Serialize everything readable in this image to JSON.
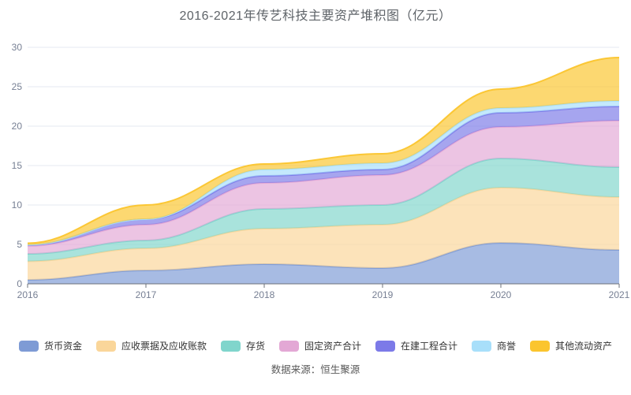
{
  "title": "2016-2021年传艺科技主要资产堆积图（亿元）",
  "source_note": "数据来源：恒生聚源",
  "chart_data": {
    "type": "area",
    "stacked": true,
    "smooth": true,
    "title": "2016-2021年传艺科技主要资产堆积图（亿元）",
    "xlabel": "",
    "ylabel": "",
    "x": [
      "2016",
      "2017",
      "2018",
      "2019",
      "2020",
      "2021"
    ],
    "series": [
      {
        "name": "货币资金",
        "color": "#7E9BD5",
        "values": [
          0.5,
          1.7,
          2.5,
          2.0,
          5.2,
          4.3
        ]
      },
      {
        "name": "应收票据及应收账款",
        "color": "#FAD69A",
        "values": [
          2.35,
          2.8,
          4.5,
          5.5,
          7.0,
          6.7
        ]
      },
      {
        "name": "存货",
        "color": "#80D5CC",
        "values": [
          0.95,
          1.0,
          2.5,
          2.5,
          3.7,
          3.8
        ]
      },
      {
        "name": "固定资产合计",
        "color": "#E3A8D5",
        "values": [
          1.0,
          2.0,
          3.3,
          3.8,
          4.0,
          5.9
        ]
      },
      {
        "name": "在建工程合计",
        "color": "#7C7AE8",
        "values": [
          0.15,
          0.7,
          0.9,
          0.7,
          1.8,
          1.8
        ]
      },
      {
        "name": "商誉",
        "color": "#A8DFFA",
        "values": [
          0.0,
          0.0,
          0.8,
          0.8,
          0.6,
          0.7
        ]
      },
      {
        "name": "其他流动资产",
        "color": "#FBC52E",
        "values": [
          0.2,
          1.8,
          0.7,
          1.2,
          2.4,
          5.5
        ]
      }
    ],
    "ylim": [
      0,
      30
    ],
    "yticks": [
      0,
      5,
      10,
      15,
      20,
      25,
      30
    ],
    "grid": true,
    "legend_position": "bottom",
    "colors": {
      "grid_line": "#E6E9F2",
      "axis_line": "#6E7079",
      "axis_label": "#767F93"
    }
  }
}
